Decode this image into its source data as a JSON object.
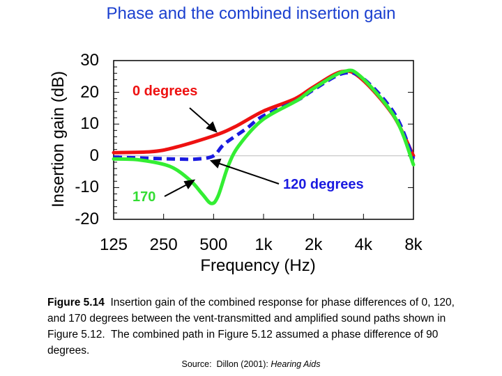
{
  "title": "Phase and the combined insertion gain",
  "chart_data": {
    "type": "line",
    "xlabel": "Frequency (Hz)",
    "ylabel": "Insertion gain (dB)",
    "xscale": "log",
    "xlim": [
      125,
      8000
    ],
    "ylim": [
      -20,
      30
    ],
    "xticks": [
      125,
      250,
      500,
      1000,
      2000,
      4000,
      8000
    ],
    "xtick_labels": [
      "125",
      "250",
      "500",
      "1k",
      "2k",
      "4k",
      "8k"
    ],
    "yticks": [
      30,
      20,
      10,
      0,
      -10,
      -20
    ],
    "ytick_labels": [
      "30",
      "20",
      "10",
      "0",
      "-10",
      "-20"
    ],
    "zero_line": true,
    "series": [
      {
        "name": "0 degrees",
        "color": "#ee1111",
        "style": "solid",
        "x": [
          125,
          210,
          290,
          500,
          675,
          990,
          1550,
          2000,
          2950,
          3840,
          6000,
          8000
        ],
        "y": [
          1,
          1.3,
          2.6,
          6.3,
          9.2,
          14,
          18,
          21.7,
          26.5,
          24.5,
          13,
          0
        ]
      },
      {
        "name": "120 degrees",
        "color": "#1a1ae0",
        "style": "dashed",
        "x": [
          125,
          290,
          398,
          500,
          580,
          785,
          990,
          1600,
          2000,
          3030,
          4060,
          6200,
          8000
        ],
        "y": [
          -0.4,
          -1,
          -1,
          0,
          3.7,
          8.5,
          12.5,
          17.5,
          20.8,
          26,
          24,
          13,
          -1
        ]
      },
      {
        "name": "170",
        "color": "#33ee33",
        "style": "solid",
        "x": [
          125,
          179,
          272,
          361,
          427,
          484,
          532,
          611,
          712,
          990,
          1600,
          2000,
          3030,
          3840,
          6200,
          8000
        ],
        "y": [
          -1,
          -1.3,
          -3.3,
          -7.7,
          -12,
          -15,
          -12.7,
          -3.3,
          3.3,
          11.4,
          17.5,
          21.2,
          26.5,
          25,
          12,
          -2.8
        ]
      }
    ],
    "annotations": [
      "0 degrees",
      "120 degrees",
      "170"
    ]
  },
  "caption": {
    "label": "Figure 5.14",
    "text": "  Insertion gain of the combined response for phase differences of 0, 120, and 170 degrees between the vent-transmitted and amplified sound paths shown in Figure 5.12.  The combined path in Figure 5.12 assumed a phase difference of 90 degrees."
  },
  "source": {
    "prefix": "Source:  Dillon (2001): ",
    "book": "Hearing Aids"
  }
}
